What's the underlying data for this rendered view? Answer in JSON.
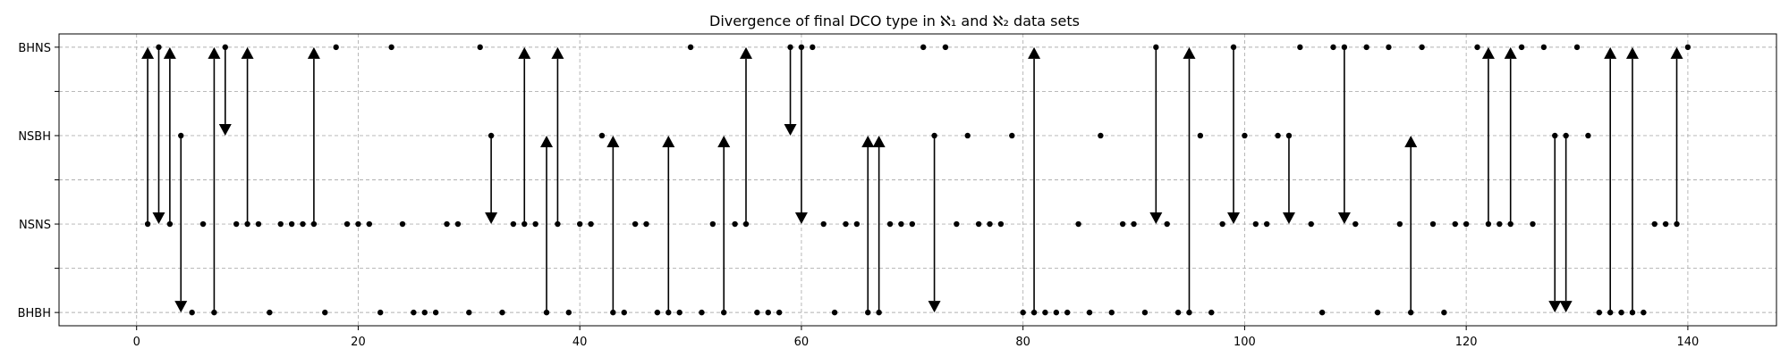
{
  "chart_data": {
    "type": "scatter",
    "title": "Divergence of final DCO type in ℵ₁ and ℵ₂ data sets",
    "xlabel": "",
    "ylabel": "",
    "xlim": [
      -7,
      148
    ],
    "ylim": [
      -0.15,
      3.15
    ],
    "grid": true,
    "x_ticks": [
      0,
      20,
      40,
      60,
      80,
      100,
      120,
      140
    ],
    "y_ticks": [
      {
        "value": 0,
        "label": "BHBH"
      },
      {
        "value": 0.5,
        "label": ""
      },
      {
        "value": 1,
        "label": "NSNS"
      },
      {
        "value": 1.5,
        "label": ""
      },
      {
        "value": 2,
        "label": "NSBH"
      },
      {
        "value": 2.5,
        "label": ""
      },
      {
        "value": 3,
        "label": "BHNS"
      }
    ],
    "points": [
      {
        "x": 1,
        "y": 1
      },
      {
        "x": 2,
        "y": 3
      },
      {
        "x": 3,
        "y": 1
      },
      {
        "x": 4,
        "y": 2
      },
      {
        "x": 5,
        "y": 0
      },
      {
        "x": 6,
        "y": 1
      },
      {
        "x": 7,
        "y": 0
      },
      {
        "x": 8,
        "y": 3
      },
      {
        "x": 9,
        "y": 1
      },
      {
        "x": 10,
        "y": 1
      },
      {
        "x": 11,
        "y": 1
      },
      {
        "x": 12,
        "y": 0
      },
      {
        "x": 13,
        "y": 1
      },
      {
        "x": 14,
        "y": 1
      },
      {
        "x": 15,
        "y": 1
      },
      {
        "x": 16,
        "y": 1
      },
      {
        "x": 17,
        "y": 0
      },
      {
        "x": 18,
        "y": 3
      },
      {
        "x": 19,
        "y": 1
      },
      {
        "x": 20,
        "y": 1
      },
      {
        "x": 21,
        "y": 1
      },
      {
        "x": 22,
        "y": 0
      },
      {
        "x": 23,
        "y": 3
      },
      {
        "x": 24,
        "y": 1
      },
      {
        "x": 25,
        "y": 0
      },
      {
        "x": 26,
        "y": 0
      },
      {
        "x": 27,
        "y": 0
      },
      {
        "x": 28,
        "y": 1
      },
      {
        "x": 29,
        "y": 1
      },
      {
        "x": 30,
        "y": 0
      },
      {
        "x": 31,
        "y": 3
      },
      {
        "x": 32,
        "y": 2
      },
      {
        "x": 33,
        "y": 0
      },
      {
        "x": 34,
        "y": 1
      },
      {
        "x": 35,
        "y": 1
      },
      {
        "x": 36,
        "y": 1
      },
      {
        "x": 37,
        "y": 0
      },
      {
        "x": 38,
        "y": 1
      },
      {
        "x": 39,
        "y": 0
      },
      {
        "x": 40,
        "y": 1
      },
      {
        "x": 41,
        "y": 1
      },
      {
        "x": 42,
        "y": 2
      },
      {
        "x": 43,
        "y": 0
      },
      {
        "x": 44,
        "y": 0
      },
      {
        "x": 45,
        "y": 1
      },
      {
        "x": 46,
        "y": 1
      },
      {
        "x": 47,
        "y": 0
      },
      {
        "x": 48,
        "y": 0
      },
      {
        "x": 49,
        "y": 0
      },
      {
        "x": 50,
        "y": 3
      },
      {
        "x": 51,
        "y": 0
      },
      {
        "x": 52,
        "y": 1
      },
      {
        "x": 53,
        "y": 0
      },
      {
        "x": 54,
        "y": 1
      },
      {
        "x": 55,
        "y": 1
      },
      {
        "x": 56,
        "y": 0
      },
      {
        "x": 57,
        "y": 0
      },
      {
        "x": 58,
        "y": 0
      },
      {
        "x": 59,
        "y": 3
      },
      {
        "x": 60,
        "y": 3
      },
      {
        "x": 61,
        "y": 3
      },
      {
        "x": 62,
        "y": 1
      },
      {
        "x": 63,
        "y": 0
      },
      {
        "x": 64,
        "y": 1
      },
      {
        "x": 65,
        "y": 1
      },
      {
        "x": 66,
        "y": 0
      },
      {
        "x": 67,
        "y": 0
      },
      {
        "x": 68,
        "y": 1
      },
      {
        "x": 69,
        "y": 1
      },
      {
        "x": 70,
        "y": 1
      },
      {
        "x": 71,
        "y": 3
      },
      {
        "x": 72,
        "y": 2
      },
      {
        "x": 73,
        "y": 3
      },
      {
        "x": 74,
        "y": 1
      },
      {
        "x": 75,
        "y": 2
      },
      {
        "x": 76,
        "y": 1
      },
      {
        "x": 77,
        "y": 1
      },
      {
        "x": 78,
        "y": 1
      },
      {
        "x": 79,
        "y": 2
      },
      {
        "x": 80,
        "y": 0
      },
      {
        "x": 81,
        "y": 0
      },
      {
        "x": 82,
        "y": 0
      },
      {
        "x": 83,
        "y": 0
      },
      {
        "x": 84,
        "y": 0
      },
      {
        "x": 85,
        "y": 1
      },
      {
        "x": 86,
        "y": 0
      },
      {
        "x": 87,
        "y": 2
      },
      {
        "x": 88,
        "y": 0
      },
      {
        "x": 89,
        "y": 1
      },
      {
        "x": 90,
        "y": 1
      },
      {
        "x": 91,
        "y": 0
      },
      {
        "x": 92,
        "y": 3
      },
      {
        "x": 93,
        "y": 1
      },
      {
        "x": 94,
        "y": 0
      },
      {
        "x": 95,
        "y": 0
      },
      {
        "x": 96,
        "y": 2
      },
      {
        "x": 97,
        "y": 0
      },
      {
        "x": 98,
        "y": 1
      },
      {
        "x": 99,
        "y": 3
      },
      {
        "x": 100,
        "y": 2
      },
      {
        "x": 101,
        "y": 1
      },
      {
        "x": 102,
        "y": 1
      },
      {
        "x": 103,
        "y": 2
      },
      {
        "x": 104,
        "y": 2
      },
      {
        "x": 105,
        "y": 3
      },
      {
        "x": 106,
        "y": 1
      },
      {
        "x": 107,
        "y": 0
      },
      {
        "x": 108,
        "y": 3
      },
      {
        "x": 109,
        "y": 3
      },
      {
        "x": 110,
        "y": 1
      },
      {
        "x": 111,
        "y": 3
      },
      {
        "x": 112,
        "y": 0
      },
      {
        "x": 113,
        "y": 3
      },
      {
        "x": 114,
        "y": 1
      },
      {
        "x": 115,
        "y": 0
      },
      {
        "x": 116,
        "y": 3
      },
      {
        "x": 117,
        "y": 1
      },
      {
        "x": 118,
        "y": 0
      },
      {
        "x": 119,
        "y": 1
      },
      {
        "x": 120,
        "y": 1
      },
      {
        "x": 121,
        "y": 3
      },
      {
        "x": 122,
        "y": 1
      },
      {
        "x": 123,
        "y": 1
      },
      {
        "x": 124,
        "y": 1
      },
      {
        "x": 125,
        "y": 3
      },
      {
        "x": 126,
        "y": 1
      },
      {
        "x": 127,
        "y": 3
      },
      {
        "x": 128,
        "y": 2
      },
      {
        "x": 129,
        "y": 2
      },
      {
        "x": 130,
        "y": 3
      },
      {
        "x": 131,
        "y": 2
      },
      {
        "x": 132,
        "y": 0
      },
      {
        "x": 133,
        "y": 0
      },
      {
        "x": 134,
        "y": 0
      },
      {
        "x": 135,
        "y": 0
      },
      {
        "x": 136,
        "y": 0
      },
      {
        "x": 137,
        "y": 1
      },
      {
        "x": 138,
        "y": 1
      },
      {
        "x": 139,
        "y": 1
      },
      {
        "x": 140,
        "y": 3
      }
    ],
    "arrows": [
      {
        "x": 1,
        "from": 1,
        "to": 3
      },
      {
        "x": 2,
        "from": 3,
        "to": 1
      },
      {
        "x": 3,
        "from": 1,
        "to": 3
      },
      {
        "x": 4,
        "from": 2,
        "to": 0
      },
      {
        "x": 7,
        "from": 0,
        "to": 3
      },
      {
        "x": 8,
        "from": 3,
        "to": 2
      },
      {
        "x": 10,
        "from": 1,
        "to": 3
      },
      {
        "x": 16,
        "from": 1,
        "to": 3
      },
      {
        "x": 32,
        "from": 2,
        "to": 1
      },
      {
        "x": 35,
        "from": 1,
        "to": 3
      },
      {
        "x": 37,
        "from": 0,
        "to": 2
      },
      {
        "x": 38,
        "from": 1,
        "to": 3
      },
      {
        "x": 43,
        "from": 0,
        "to": 2
      },
      {
        "x": 48,
        "from": 0,
        "to": 2
      },
      {
        "x": 53,
        "from": 0,
        "to": 2
      },
      {
        "x": 55,
        "from": 1,
        "to": 3
      },
      {
        "x": 59,
        "from": 3,
        "to": 2
      },
      {
        "x": 60,
        "from": 3,
        "to": 1
      },
      {
        "x": 66,
        "from": 0,
        "to": 2
      },
      {
        "x": 67,
        "from": 0,
        "to": 2
      },
      {
        "x": 72,
        "from": 2,
        "to": 0
      },
      {
        "x": 81,
        "from": 0,
        "to": 3
      },
      {
        "x": 92,
        "from": 3,
        "to": 1
      },
      {
        "x": 95,
        "from": 0,
        "to": 3
      },
      {
        "x": 99,
        "from": 3,
        "to": 1
      },
      {
        "x": 104,
        "from": 2,
        "to": 1
      },
      {
        "x": 109,
        "from": 3,
        "to": 1
      },
      {
        "x": 115,
        "from": 0,
        "to": 2
      },
      {
        "x": 122,
        "from": 1,
        "to": 3
      },
      {
        "x": 124,
        "from": 1,
        "to": 3
      },
      {
        "x": 128,
        "from": 2,
        "to": 0
      },
      {
        "x": 129,
        "from": 2,
        "to": 0
      },
      {
        "x": 133,
        "from": 0,
        "to": 3
      },
      {
        "x": 135,
        "from": 0,
        "to": 3
      },
      {
        "x": 139,
        "from": 1,
        "to": 3
      }
    ]
  }
}
